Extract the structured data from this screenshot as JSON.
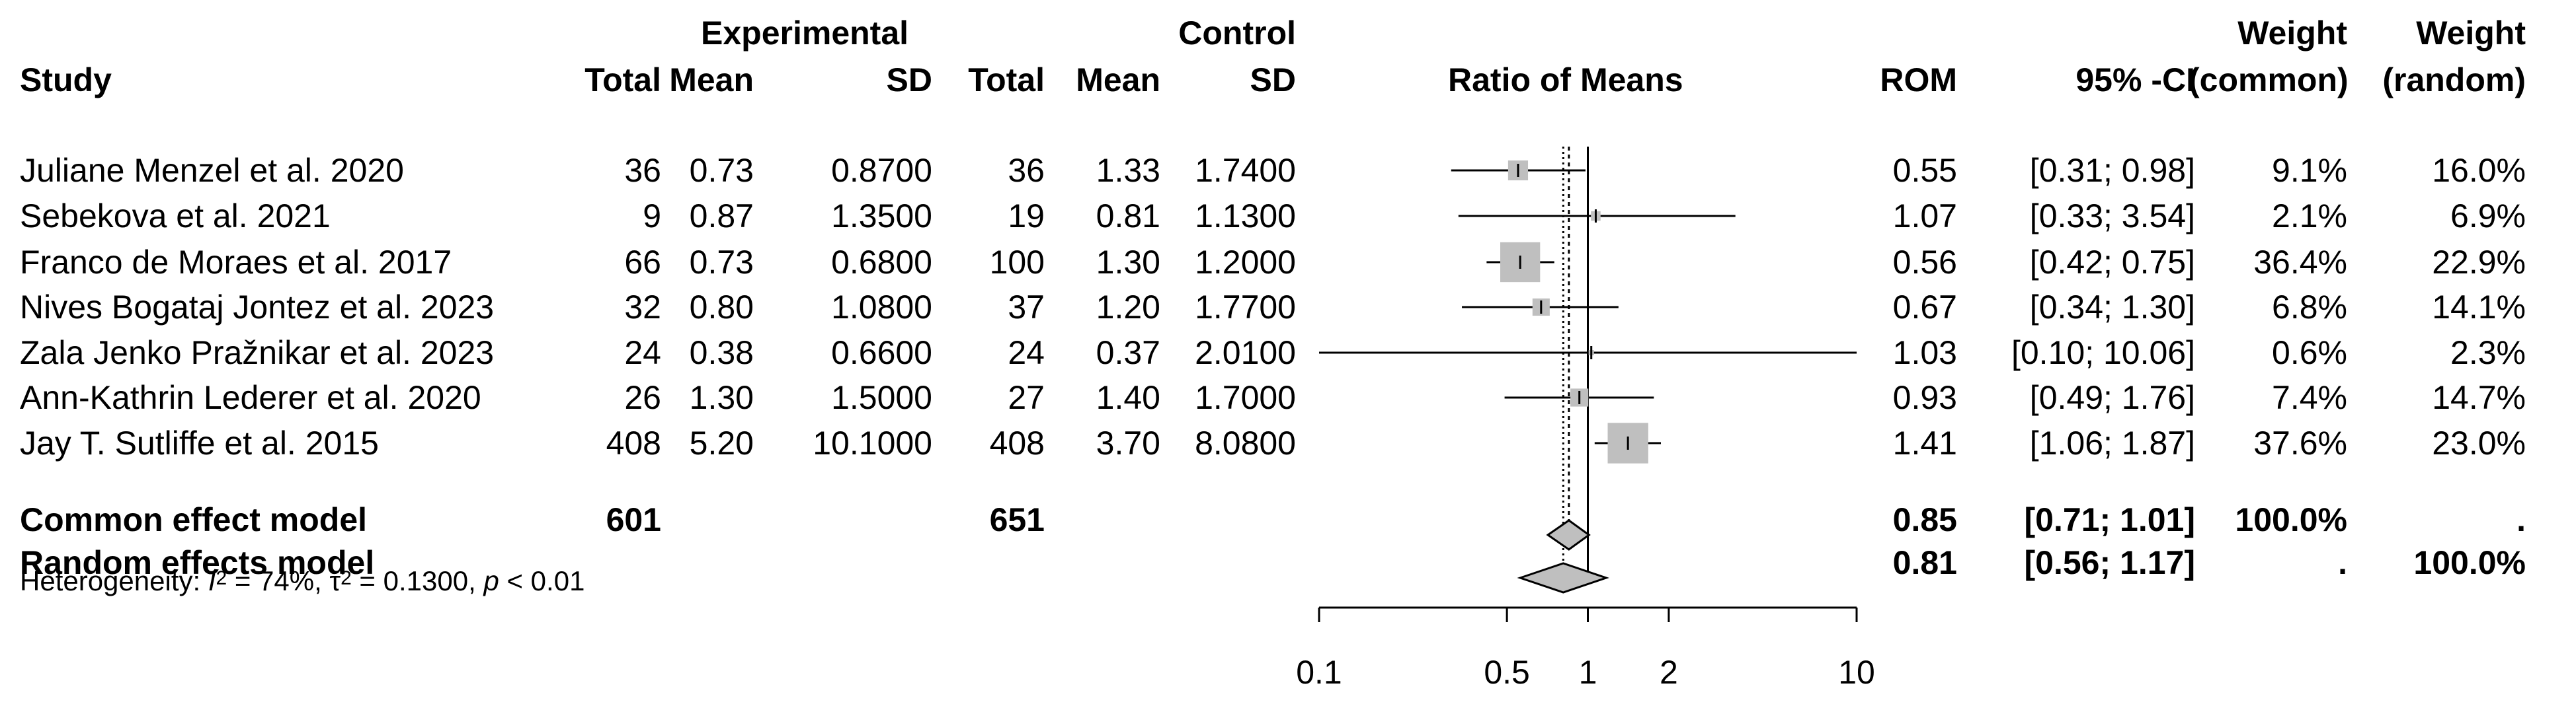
{
  "headers": {
    "group_experimental": "Experimental",
    "group_control": "Control",
    "study": "Study",
    "total": "Total",
    "mean": "Mean",
    "sd": "SD",
    "plot": "Ratio of Means",
    "rom": "ROM",
    "ci": "95% -CI",
    "weight": "Weight",
    "common": "(common)",
    "random": "(random)"
  },
  "chart_data": {
    "type": "forest",
    "title": "Ratio of Means",
    "xscale": "log",
    "xlim": [
      0.1,
      10
    ],
    "ticks": [
      0.1,
      0.5,
      1,
      2,
      10
    ],
    "tick_labels": [
      "0.1",
      "0.5",
      "1",
      "2",
      "10"
    ],
    "reference_line": 1,
    "studies": [
      {
        "name": "Juliane Menzel et al. 2020",
        "e_total": "36",
        "e_mean": "0.73",
        "e_sd": "0.8700",
        "c_total": "36",
        "c_mean": "1.33",
        "c_sd": "1.7400",
        "rom": 0.55,
        "lo": 0.31,
        "hi": 0.98,
        "rom_text": "0.55",
        "ci_text": "[0.31;  0.98]",
        "w_common": "9.1%",
        "w_random": "16.0%",
        "weight": 9.1
      },
      {
        "name": "Sebekova et al. 2021",
        "e_total": "9",
        "e_mean": "0.87",
        "e_sd": "1.3500",
        "c_total": "19",
        "c_mean": "0.81",
        "c_sd": "1.1300",
        "rom": 1.07,
        "lo": 0.33,
        "hi": 3.54,
        "rom_text": "1.07",
        "ci_text": "[0.33;  3.54]",
        "w_common": "2.1%",
        "w_random": "6.9%",
        "weight": 2.1
      },
      {
        "name": "Franco de Moraes et al. 2017",
        "e_total": "66",
        "e_mean": "0.73",
        "e_sd": "0.6800",
        "c_total": "100",
        "c_mean": "1.30",
        "c_sd": "1.2000",
        "rom": 0.56,
        "lo": 0.42,
        "hi": 0.75,
        "rom_text": "0.56",
        "ci_text": "[0.42;  0.75]",
        "w_common": "36.4%",
        "w_random": "22.9%",
        "weight": 36.4
      },
      {
        "name": "Nives Bogataj Jontez et al. 2023",
        "e_total": "32",
        "e_mean": "0.80",
        "e_sd": "1.0800",
        "c_total": "37",
        "c_mean": "1.20",
        "c_sd": "1.7700",
        "rom": 0.67,
        "lo": 0.34,
        "hi": 1.3,
        "rom_text": "0.67",
        "ci_text": "[0.34;  1.30]",
        "w_common": "6.8%",
        "w_random": "14.1%",
        "weight": 6.8
      },
      {
        "name": "Zala Jenko Pražnikar et al. 2023",
        "e_total": "24",
        "e_mean": "0.38",
        "e_sd": "0.6600",
        "c_total": "24",
        "c_mean": "0.37",
        "c_sd": "2.0100",
        "rom": 1.03,
        "lo": 0.1,
        "hi": 10.06,
        "rom_text": "1.03",
        "ci_text": "[0.10; 10.06]",
        "w_common": "0.6%",
        "w_random": "2.3%",
        "weight": 0.6
      },
      {
        "name": "Ann-Kathrin Lederer et al. 2020",
        "e_total": "26",
        "e_mean": "1.30",
        "e_sd": "1.5000",
        "c_total": "27",
        "c_mean": "1.40",
        "c_sd": "1.7000",
        "rom": 0.93,
        "lo": 0.49,
        "hi": 1.76,
        "rom_text": "0.93",
        "ci_text": "[0.49;  1.76]",
        "w_common": "7.4%",
        "w_random": "14.7%",
        "weight": 7.4
      },
      {
        "name": "Jay T. Sutliffe et al. 2015",
        "e_total": "408",
        "e_mean": "5.20",
        "e_sd": "10.1000",
        "c_total": "408",
        "c_mean": "3.70",
        "c_sd": "8.0800",
        "rom": 1.41,
        "lo": 1.06,
        "hi": 1.87,
        "rom_text": "1.41",
        "ci_text": "[1.06;  1.87]",
        "w_common": "37.6%",
        "w_random": "23.0%",
        "weight": 37.6
      }
    ],
    "common": {
      "label": "Common effect model",
      "e_total": "601",
      "c_total": "651",
      "rom": 0.85,
      "lo": 0.71,
      "hi": 1.01,
      "rom_text": "0.85",
      "ci_text": "[0.71;  1.01]",
      "w_common": "100.0%",
      "w_random": "."
    },
    "random": {
      "label": "Random effects model",
      "rom": 0.81,
      "lo": 0.56,
      "hi": 1.17,
      "rom_text": "0.81",
      "ci_text": "[0.56;  1.17]",
      "w_common": ".",
      "w_random": "100.0%"
    },
    "heterogeneity": {
      "prefix": "Heterogeneity: ",
      "i2": "74%",
      "tau2": "0.1300",
      "p": "< 0.01"
    }
  }
}
